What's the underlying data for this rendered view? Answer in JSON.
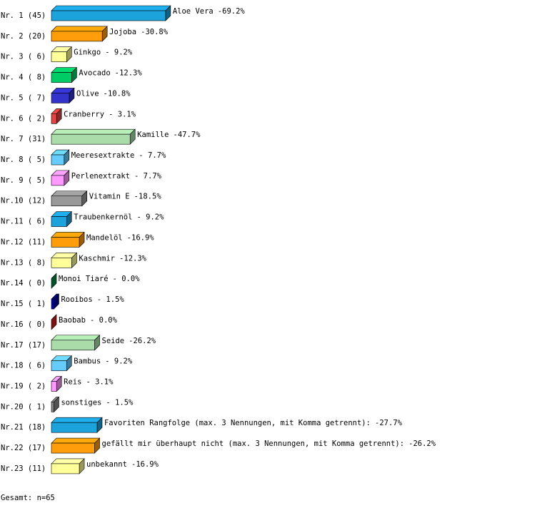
{
  "chart_data": {
    "type": "bar3d",
    "rank_labels": [
      "Nr. 1 (45)",
      "Nr. 2 (20)",
      "Nr. 3 ( 6)",
      "Nr. 4 ( 8)",
      "Nr. 5 ( 7)",
      "Nr. 6 ( 2)",
      "Nr. 7 (31)",
      "Nr. 8 ( 5)",
      "Nr. 9 ( 5)",
      "Nr.10 (12)",
      "Nr.11 ( 6)",
      "Nr.12 (11)",
      "Nr.13 ( 8)",
      "Nr.14 ( 0)",
      "Nr.15 ( 1)",
      "Nr.16 ( 0)",
      "Nr.17 (17)",
      "Nr.18 ( 6)",
      "Nr.19 ( 2)",
      "Nr.20 ( 1)",
      "Nr.21 (18)",
      "Nr.22 (17)",
      "Nr.23 (11)"
    ],
    "categories": [
      "Aloe Vera",
      "Jojoba",
      "Ginkgo",
      "Avocado",
      "Olive",
      "Cranberry",
      "Kamille",
      "Meeresextrakte",
      "Perlenextrakt",
      "Vitamin E",
      "Traubenkernöl",
      "Mandelöl",
      "Kaschmir",
      "Monoi Tiaré",
      "Rooibos",
      "Baobab",
      "Seide",
      "Bambus",
      "Reis",
      "sonstiges",
      "Favoriten Rangfolge (max. 3 Nennungen, mit Komma getrennt):",
      "gefällt mir überhaupt nicht (max. 3 Nennungen, mit Komma getrennt):",
      "unbekannt"
    ],
    "separator": "-",
    "values": [
      69.2,
      30.8,
      9.2,
      12.3,
      10.8,
      3.1,
      47.7,
      7.7,
      7.7,
      18.5,
      9.2,
      16.9,
      12.3,
      0.0,
      1.5,
      0.0,
      26.2,
      9.2,
      3.1,
      1.5,
      27.7,
      26.2,
      16.9
    ],
    "value_labels": [
      "69.2%",
      "30.8%",
      "9.2%",
      "12.3%",
      "10.8%",
      "3.1%",
      "47.7%",
      "7.7%",
      "7.7%",
      "18.5%",
      "9.2%",
      "16.9%",
      "12.3%",
      "0.0%",
      "1.5%",
      "0.0%",
      "26.2%",
      "9.2%",
      "3.1%",
      "1.5%",
      "27.7%",
      "26.2%",
      "16.9%"
    ],
    "colors": [
      "#1ca3dc",
      "#ff9d0a",
      "#ffff99",
      "#00cc66",
      "#3333cc",
      "#e04444",
      "#aadcaa",
      "#66ccff",
      "#ff99ff",
      "#999999",
      "#1ca3dc",
      "#ff9d0a",
      "#ffff99",
      "#008844",
      "#000099",
      "#cc2222",
      "#aadcaa",
      "#66ccff",
      "#ff99ff",
      "#888888",
      "#1ca3dc",
      "#ff9d0a",
      "#ffff99"
    ],
    "footer": "Gesamt: n=65"
  }
}
